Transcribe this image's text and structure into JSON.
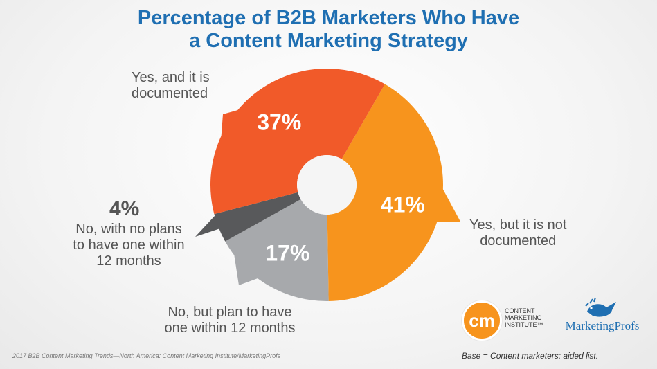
{
  "title_line1": "Percentage of B2B Marketers Who Have",
  "title_line2": "a Content Marketing Strategy",
  "chart_data": {
    "type": "pie",
    "title": "Percentage of B2B Marketers Who Have a Content Marketing Strategy",
    "donut": true,
    "slices": [
      {
        "label": "Yes, and it is documented",
        "value": 37,
        "display": "37%",
        "color": "#f15a29"
      },
      {
        "label": "Yes, but it is not documented",
        "value": 41,
        "display": "41%",
        "color": "#f7941d"
      },
      {
        "label": "No, but plan to have one within 12 months",
        "value": 17,
        "display": "17%",
        "color": "#a7a9ac"
      },
      {
        "label": "No, with no plans to have one within 12 months",
        "value": 4,
        "display": "4%",
        "color": "#58595b"
      }
    ]
  },
  "labels": {
    "documented_l1": "Yes, and it is",
    "documented_l2": "documented",
    "not_documented_l1": "Yes, but it is not",
    "not_documented_l2": "documented",
    "plan_l1": "No, but plan to have",
    "plan_l2": "one within 12 months",
    "no_plans_pct": "4%",
    "no_plans_l1": "No, with no plans",
    "no_plans_l2": "to have one within",
    "no_plans_l3": "12 months"
  },
  "footer_source": "2017 B2B Content Marketing Trends—North America: Content Marketing Institute/MarketingProfs",
  "footer_base": "Base = Content marketers; aided list.",
  "logos": {
    "cmi_mark": "cm",
    "cmi_line1": "CONTENT",
    "cmi_line2": "MARKETING",
    "cmi_line3": "INSTITUTE™",
    "mp_name": "MarketingProfs"
  }
}
